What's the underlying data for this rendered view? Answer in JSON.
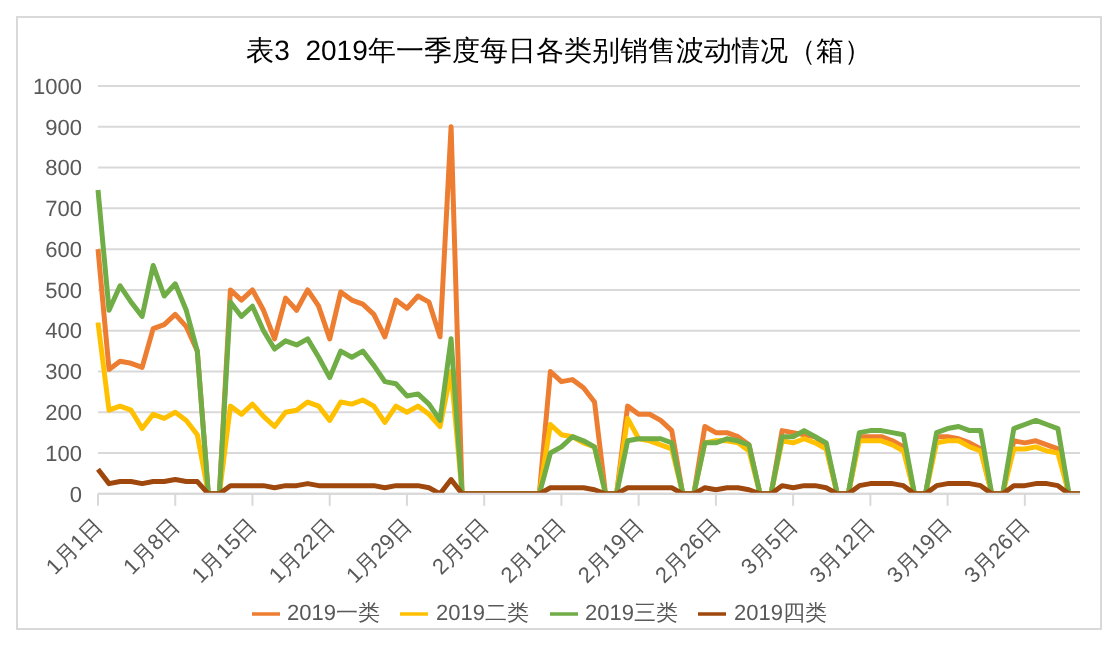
{
  "chart_data": {
    "type": "line",
    "title": "表3  2019年一季度每日各类别销售波动情况（箱）",
    "categories": [
      "1月1日",
      null,
      null,
      null,
      null,
      null,
      null,
      "1月8日",
      null,
      null,
      null,
      null,
      null,
      null,
      "1月15日",
      null,
      null,
      null,
      null,
      null,
      null,
      "1月22日",
      null,
      null,
      null,
      null,
      null,
      null,
      "1月29日",
      null,
      null,
      null,
      null,
      null,
      null,
      "2月5日",
      null,
      null,
      null,
      null,
      null,
      null,
      "2月12日",
      null,
      null,
      null,
      null,
      null,
      null,
      "2月19日",
      null,
      null,
      null,
      null,
      null,
      null,
      "2月26日",
      null,
      null,
      null,
      null,
      null,
      null,
      "3月5日",
      null,
      null,
      null,
      null,
      null,
      null,
      "3月12日",
      null,
      null,
      null,
      null,
      null,
      null,
      "3月19日",
      null,
      null,
      null,
      null,
      null,
      null,
      "3月26日",
      null,
      null,
      null,
      null,
      null
    ],
    "series": [
      {
        "name": "2019一类",
        "color": "#ed7d31",
        "values": [
          600,
          305,
          325,
          320,
          310,
          405,
          415,
          440,
          410,
          350,
          0,
          0,
          500,
          475,
          500,
          450,
          380,
          480,
          450,
          500,
          460,
          380,
          495,
          475,
          465,
          440,
          385,
          475,
          455,
          485,
          470,
          385,
          900,
          0,
          0,
          0,
          0,
          0,
          0,
          0,
          0,
          300,
          275,
          280,
          260,
          225,
          0,
          0,
          215,
          195,
          195,
          180,
          155,
          0,
          0,
          165,
          150,
          150,
          140,
          120,
          0,
          0,
          155,
          150,
          145,
          140,
          115,
          0,
          0,
          140,
          140,
          140,
          130,
          115,
          0,
          0,
          140,
          140,
          135,
          125,
          110,
          0,
          0,
          130,
          125,
          130,
          120,
          110,
          0,
          0
        ]
      },
      {
        "name": "2019二类",
        "color": "#ffc000",
        "values": [
          420,
          205,
          215,
          205,
          160,
          195,
          185,
          200,
          180,
          145,
          0,
          0,
          215,
          195,
          220,
          190,
          165,
          200,
          205,
          225,
          215,
          180,
          225,
          220,
          230,
          215,
          175,
          215,
          200,
          215,
          195,
          165,
          300,
          0,
          0,
          0,
          0,
          0,
          0,
          0,
          0,
          170,
          145,
          140,
          125,
          115,
          0,
          0,
          185,
          135,
          130,
          120,
          110,
          0,
          0,
          125,
          130,
          130,
          125,
          105,
          0,
          0,
          130,
          125,
          135,
          125,
          110,
          0,
          0,
          130,
          130,
          130,
          120,
          105,
          0,
          0,
          125,
          130,
          130,
          115,
          105,
          0,
          0,
          110,
          110,
          115,
          105,
          100,
          0,
          0
        ]
      },
      {
        "name": "2019三类",
        "color": "#70ad47",
        "values": [
          745,
          450,
          510,
          470,
          435,
          560,
          485,
          515,
          450,
          350,
          0,
          0,
          470,
          435,
          460,
          400,
          355,
          375,
          365,
          380,
          335,
          285,
          350,
          335,
          350,
          315,
          275,
          270,
          240,
          245,
          220,
          180,
          380,
          0,
          0,
          0,
          0,
          0,
          0,
          0,
          0,
          100,
          115,
          140,
          130,
          115,
          0,
          0,
          130,
          135,
          135,
          135,
          125,
          0,
          0,
          125,
          125,
          135,
          130,
          120,
          0,
          0,
          140,
          140,
          155,
          140,
          125,
          0,
          0,
          150,
          155,
          155,
          150,
          145,
          0,
          0,
          150,
          160,
          165,
          155,
          155,
          0,
          0,
          160,
          170,
          180,
          170,
          160,
          0,
          0
        ]
      },
      {
        "name": "2019四类",
        "color": "#9e480e",
        "values": [
          60,
          25,
          30,
          30,
          25,
          30,
          30,
          35,
          30,
          30,
          0,
          0,
          20,
          20,
          20,
          20,
          15,
          20,
          20,
          25,
          20,
          20,
          20,
          20,
          20,
          20,
          15,
          20,
          20,
          20,
          15,
          0,
          35,
          0,
          0,
          0,
          0,
          0,
          0,
          0,
          0,
          15,
          15,
          15,
          15,
          10,
          0,
          0,
          15,
          15,
          15,
          15,
          15,
          0,
          0,
          15,
          10,
          15,
          15,
          10,
          0,
          0,
          20,
          15,
          20,
          20,
          15,
          0,
          0,
          20,
          25,
          25,
          25,
          20,
          0,
          0,
          20,
          25,
          25,
          25,
          20,
          0,
          0,
          20,
          20,
          25,
          25,
          20,
          0,
          0
        ]
      }
    ],
    "ylim": [
      0,
      1000
    ],
    "yticks": [
      0,
      100,
      200,
      300,
      400,
      500,
      600,
      700,
      800,
      900,
      1000
    ],
    "grid": "y",
    "legend": "bottom",
    "marker": "none",
    "line_style": "solid"
  }
}
